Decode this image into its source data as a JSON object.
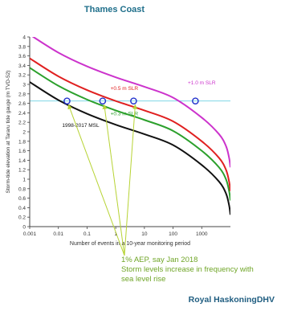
{
  "header": {
    "title": "Thames Coast"
  },
  "chart_data": {
    "type": "line",
    "title": "Thames Coast",
    "xlabel": "Number of events in a 10-year monitoring period",
    "ylabel": "Storm-tide elevation at Tararu tide gauge (m TVD-52)",
    "xscale": "log",
    "xlim": [
      0.001,
      10000
    ],
    "ylim": [
      0,
      4
    ],
    "x_ticks": [
      "0.001",
      "0.01",
      "0.1",
      "1",
      "10",
      "100",
      "1000"
    ],
    "y_ticks": [
      "0",
      "0.2",
      "0.4",
      "0.6",
      "0.8",
      "1",
      "1.2",
      "1.4",
      "1.6",
      "1.8",
      "2",
      "2.2",
      "2.4",
      "2.6",
      "2.8",
      "3",
      "3.2",
      "3.4",
      "3.6",
      "3.8",
      "4"
    ],
    "grid": false,
    "reference_line": {
      "y": 2.65,
      "color": "#7fd6e6"
    },
    "series": [
      {
        "name": "1998-2017 MSL",
        "color": "#111111",
        "x": [
          0.001,
          0.01,
          0.1,
          1,
          10,
          100,
          1000,
          4000,
          7000,
          9000,
          10000
        ],
        "y": [
          3.05,
          2.67,
          2.38,
          2.15,
          1.95,
          1.72,
          1.3,
          0.95,
          0.7,
          0.45,
          0.25
        ]
      },
      {
        "name": "+0.3 m SLR",
        "color": "#2ca02c",
        "x": [
          0.001,
          0.01,
          0.1,
          1,
          10,
          100,
          1000,
          4000,
          7000,
          9000,
          10000
        ],
        "y": [
          3.35,
          2.97,
          2.68,
          2.45,
          2.25,
          2.02,
          1.6,
          1.25,
          1.0,
          0.75,
          0.55
        ]
      },
      {
        "name": "+0.5 m SLR",
        "color": "#e02020",
        "x": [
          0.001,
          0.01,
          0.1,
          1,
          10,
          100,
          1000,
          4000,
          7000,
          9000,
          10000
        ],
        "y": [
          3.55,
          3.17,
          2.88,
          2.65,
          2.45,
          2.22,
          1.8,
          1.45,
          1.2,
          0.95,
          0.75
        ]
      },
      {
        "name": "+1.0 m SLR",
        "color": "#cc33cc",
        "x": [
          0.001,
          0.01,
          0.1,
          1,
          10,
          100,
          1000,
          4000,
          7000,
          9000,
          10000
        ],
        "y": [
          4.05,
          3.67,
          3.38,
          3.15,
          2.95,
          2.72,
          2.3,
          1.95,
          1.7,
          1.45,
          1.25
        ]
      }
    ],
    "labels": [
      {
        "text": "+1.0 m SLR",
        "color": "#cc33cc",
        "x": 1000,
        "y": 3.0
      },
      {
        "text": "+0.5 m SLR",
        "color": "#e02020",
        "x": 2,
        "y": 2.88
      },
      {
        "text": "+0.3 m SLR",
        "color": "#2ca02c",
        "x": 2,
        "y": 2.35
      },
      {
        "text": "1998-2017 MSL",
        "color": "#111111",
        "x": 0.06,
        "y": 2.1
      }
    ],
    "markers": [
      {
        "x": 0.02,
        "y": 2.65
      },
      {
        "x": 0.35,
        "y": 2.65
      },
      {
        "x": 4.2,
        "y": 2.65
      },
      {
        "x": 600,
        "y": 2.65
      }
    ],
    "annotation": {
      "lines": [
        "1% AEP, say Jan 2018",
        "Storm levels increase in frequency with",
        "sea level rise"
      ],
      "color": "#6fa527",
      "arrow_targets": [
        {
          "x": 0.02,
          "y": 2.65
        },
        {
          "x": 0.35,
          "y": 2.65
        },
        {
          "x": 4.2,
          "y": 2.65
        }
      ]
    }
  },
  "footer": {
    "brand": "Royal HaskoningDHV"
  }
}
